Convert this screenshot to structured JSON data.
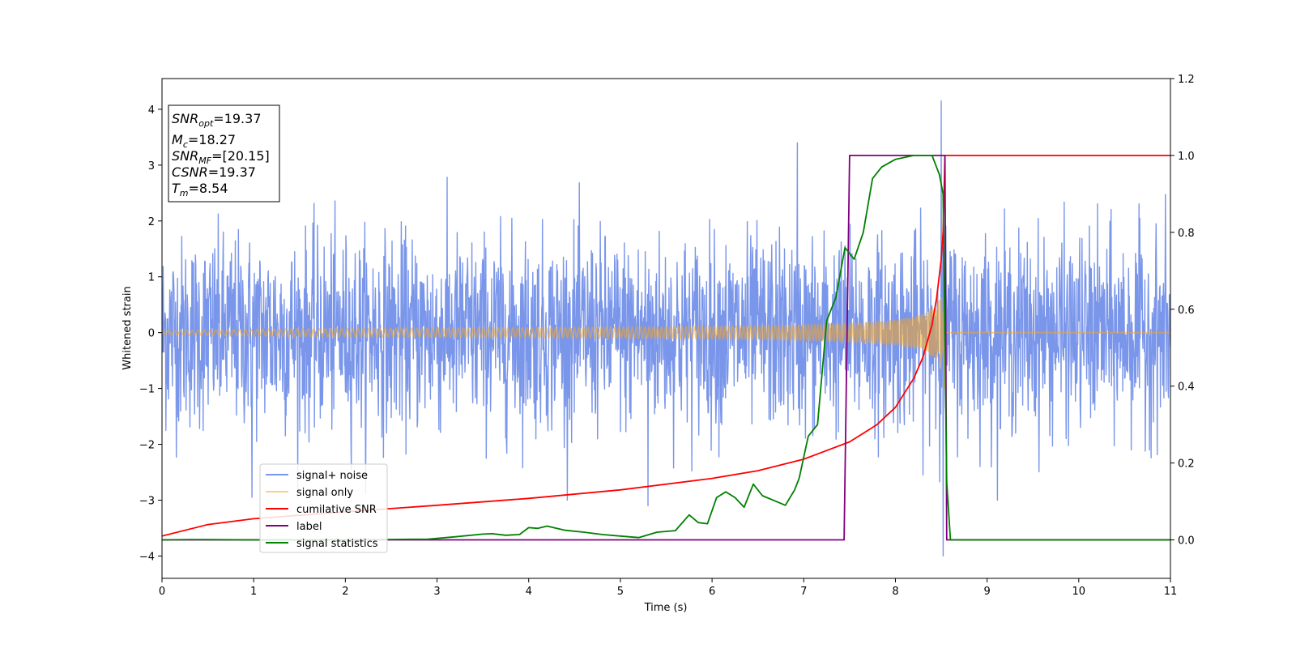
{
  "chart_data": {
    "type": "line",
    "xlabel": "Time (s)",
    "ylabel": "Whitened strain",
    "xlim": [
      0,
      11
    ],
    "ylim": [
      -4.4,
      4.55
    ],
    "y2lim": [
      -0.1,
      1.2
    ],
    "x_ticks": [
      0,
      1,
      2,
      3,
      4,
      5,
      6,
      7,
      8,
      9,
      10,
      11
    ],
    "y_ticks": [
      -4,
      -3,
      -2,
      -1,
      0,
      1,
      2,
      3,
      4
    ],
    "y_tick_labels": [
      "−4",
      "−3",
      "−2",
      "−1",
      "0",
      "1",
      "2",
      "3",
      "4"
    ],
    "y2_ticks": [
      0.0,
      0.2,
      0.4,
      0.6,
      0.8,
      1.0,
      1.2
    ],
    "y2_tick_labels": [
      "0.0",
      "0.2",
      "0.4",
      "0.6",
      "0.8",
      "1.0",
      "1.2"
    ],
    "grid": false,
    "legend_position": "lower-left",
    "annotation": {
      "lines": [
        {
          "sym": "SNR",
          "sub": "opt",
          "rest": "=19.37"
        },
        {
          "sym": "M",
          "sub": "c",
          "rest": "=18.27"
        },
        {
          "sym": "SNR",
          "sub": "MF",
          "rest": "=[20.15]"
        },
        {
          "sym": "CSNR",
          "sub": "",
          "rest": "=19.37"
        },
        {
          "sym": "T",
          "sub": "m",
          "rest": "=8.54"
        }
      ]
    },
    "series": [
      {
        "name": "signal+ noise",
        "color": "#4169e1",
        "axis": "left",
        "kind": "noise",
        "std": 0.85,
        "t_range": [
          0,
          11
        ],
        "spikes": [
          {
            "x": 6.93,
            "y": 3.4
          },
          {
            "x": 8.5,
            "y": 4.15
          },
          {
            "x": 8.52,
            "y": -4.0
          },
          {
            "x": 5.3,
            "y": -3.1
          },
          {
            "x": 0.98,
            "y": -2.95
          }
        ]
      },
      {
        "name": "signal only",
        "color": "#f5a623",
        "axis": "left",
        "kind": "chirp",
        "t_merge": 8.54,
        "amp_start": 0.03,
        "amp_end": 1.25
      },
      {
        "name": "cumilative SNR",
        "color": "#ff0000",
        "axis": "right",
        "points": [
          [
            0,
            0.01
          ],
          [
            0.5,
            0.04
          ],
          [
            1,
            0.055
          ],
          [
            2,
            0.073
          ],
          [
            3,
            0.09
          ],
          [
            4,
            0.108
          ],
          [
            5,
            0.13
          ],
          [
            6,
            0.16
          ],
          [
            6.5,
            0.18
          ],
          [
            7,
            0.21
          ],
          [
            7.5,
            0.255
          ],
          [
            7.8,
            0.3
          ],
          [
            8.0,
            0.345
          ],
          [
            8.2,
            0.42
          ],
          [
            8.3,
            0.475
          ],
          [
            8.4,
            0.56
          ],
          [
            8.45,
            0.63
          ],
          [
            8.5,
            0.73
          ],
          [
            8.52,
            0.8
          ],
          [
            8.54,
            1.0
          ],
          [
            11,
            1.0
          ]
        ]
      },
      {
        "name": "label",
        "color": "#800080",
        "axis": "right",
        "points": [
          [
            0,
            0.0
          ],
          [
            7.44,
            0.0
          ],
          [
            7.5,
            1.0
          ],
          [
            8.54,
            1.0
          ],
          [
            8.56,
            0.0
          ],
          [
            11,
            0.0
          ]
        ]
      },
      {
        "name": "signal statistics",
        "color": "#008000",
        "axis": "right",
        "points": [
          [
            0,
            0.0
          ],
          [
            0.3,
            0.001
          ],
          [
            1,
            0.0
          ],
          [
            2,
            0.0
          ],
          [
            2.9,
            0.002
          ],
          [
            3.2,
            0.008
          ],
          [
            3.5,
            0.015
          ],
          [
            3.6,
            0.016
          ],
          [
            3.75,
            0.012
          ],
          [
            3.9,
            0.014
          ],
          [
            4.0,
            0.032
          ],
          [
            4.1,
            0.03
          ],
          [
            4.2,
            0.036
          ],
          [
            4.4,
            0.025
          ],
          [
            4.6,
            0.02
          ],
          [
            4.8,
            0.014
          ],
          [
            5.0,
            0.01
          ],
          [
            5.2,
            0.006
          ],
          [
            5.4,
            0.02
          ],
          [
            5.6,
            0.024
          ],
          [
            5.75,
            0.065
          ],
          [
            5.85,
            0.045
          ],
          [
            5.95,
            0.042
          ],
          [
            6.05,
            0.11
          ],
          [
            6.15,
            0.125
          ],
          [
            6.25,
            0.11
          ],
          [
            6.35,
            0.085
          ],
          [
            6.45,
            0.145
          ],
          [
            6.55,
            0.115
          ],
          [
            6.7,
            0.1
          ],
          [
            6.8,
            0.09
          ],
          [
            6.9,
            0.13
          ],
          [
            6.95,
            0.16
          ],
          [
            7.05,
            0.27
          ],
          [
            7.15,
            0.3
          ],
          [
            7.25,
            0.57
          ],
          [
            7.35,
            0.63
          ],
          [
            7.45,
            0.76
          ],
          [
            7.55,
            0.73
          ],
          [
            7.65,
            0.8
          ],
          [
            7.75,
            0.94
          ],
          [
            7.85,
            0.97
          ],
          [
            8.0,
            0.99
          ],
          [
            8.2,
            1.0
          ],
          [
            8.4,
            1.0
          ],
          [
            8.48,
            0.95
          ],
          [
            8.52,
            0.9
          ],
          [
            8.56,
            0.15
          ],
          [
            8.6,
            0.0
          ],
          [
            11,
            0.0
          ]
        ]
      }
    ]
  }
}
